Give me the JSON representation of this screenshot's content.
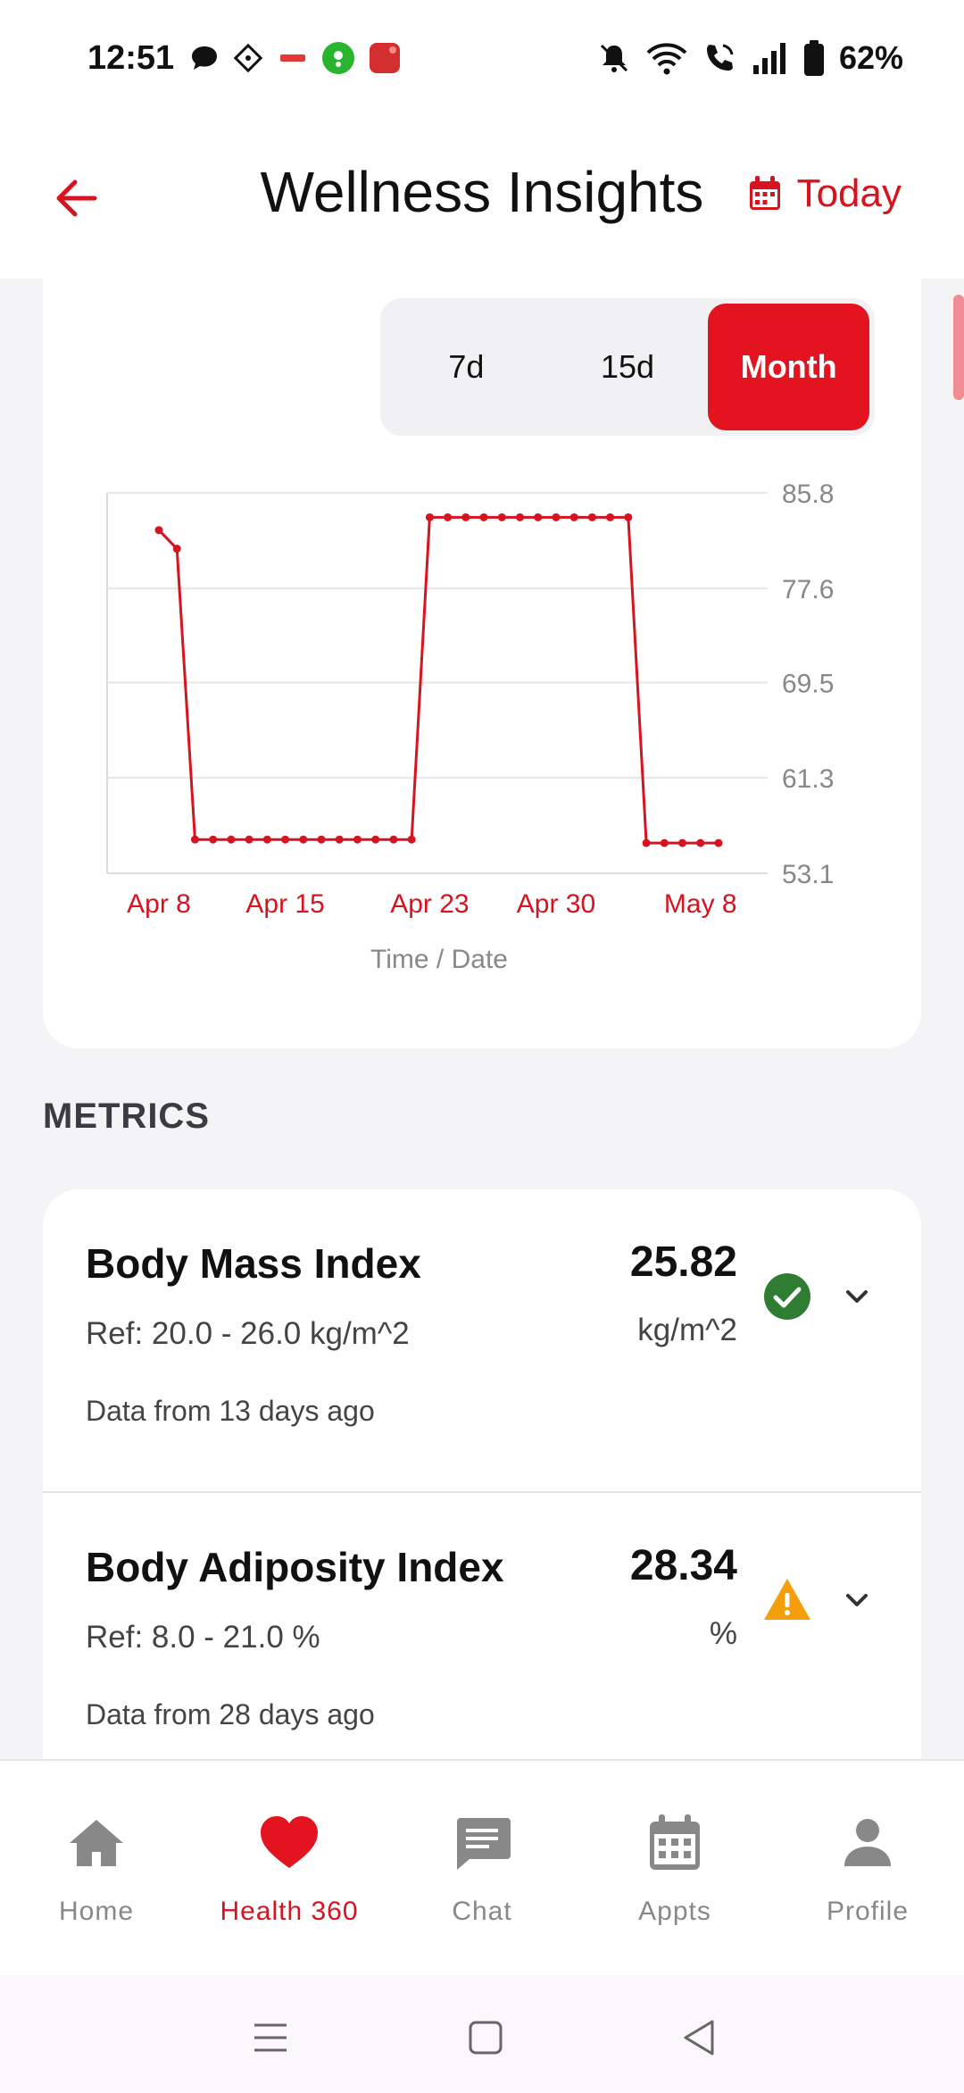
{
  "status_bar": {
    "time": "12:51",
    "battery_pct": "62%",
    "icons": [
      "chat-bubble-icon",
      "diamond-app-icon",
      "zivo-app-icon",
      "green-app-icon",
      "red-app-icon",
      "mute-icon",
      "wifi-icon",
      "wifi-call-icon",
      "signal-icon",
      "battery-icon"
    ]
  },
  "header": {
    "title": "Wellness Insights",
    "today_label": "Today",
    "accent": "#d6141f"
  },
  "period_toggle": {
    "options": [
      "7d",
      "15d",
      "Month"
    ],
    "selected": "Month"
  },
  "chart_data": {
    "type": "line",
    "xlabel": "Time / Date",
    "x_ticks": [
      "Apr 8",
      "Apr 15",
      "Apr 23",
      "Apr 30",
      "May 8"
    ],
    "y_ticks": [
      85.8,
      77.6,
      69.5,
      61.3,
      53.1
    ],
    "ylim": [
      53.1,
      85.8
    ],
    "grid": true,
    "axis_position": "right",
    "color": "#d6141f",
    "series": [
      {
        "x": [
          0,
          1,
          2,
          3,
          4,
          5,
          6,
          7,
          8,
          9,
          10,
          11,
          12,
          13,
          14,
          15,
          16,
          17,
          18,
          19,
          20,
          21,
          22,
          23,
          24,
          25,
          26,
          27,
          28,
          29,
          30,
          31
        ],
        "values": [
          82.6,
          81.0,
          56.0,
          56.0,
          56.0,
          56.0,
          56.0,
          56.0,
          56.0,
          56.0,
          56.0,
          56.0,
          56.0,
          56.0,
          56.0,
          83.7,
          83.7,
          83.7,
          83.7,
          83.7,
          83.7,
          83.7,
          83.7,
          83.7,
          83.7,
          83.7,
          83.7,
          55.7,
          55.7,
          55.7,
          55.7,
          55.7
        ]
      }
    ]
  },
  "metrics": {
    "title": "METRICS",
    "items": [
      {
        "name": "Body Mass Index",
        "ref": "Ref: 20.0 - 26.0 kg/m^2",
        "age": "Data from 13 days ago",
        "value": "25.82",
        "unit": "kg/m^2",
        "status": "normal",
        "status_icon": "check-circle-icon",
        "status_color": "#2e7d32"
      },
      {
        "name": "Body Adiposity Index",
        "ref": "Ref: 8.0 - 21.0 %",
        "age": "Data from 28 days ago",
        "value": "28.34",
        "unit": "%",
        "status": "warning",
        "status_icon": "warning-icon",
        "status_color": "#f59e0b"
      }
    ]
  },
  "bottom_nav": {
    "items": [
      {
        "label": "Home",
        "icon": "home-icon"
      },
      {
        "label": "Health 360",
        "icon": "heart-icon"
      },
      {
        "label": "Chat",
        "icon": "chat-icon"
      },
      {
        "label": "Appts",
        "icon": "calendar-icon"
      },
      {
        "label": "Profile",
        "icon": "profile-icon"
      }
    ],
    "active": "Health 360"
  }
}
